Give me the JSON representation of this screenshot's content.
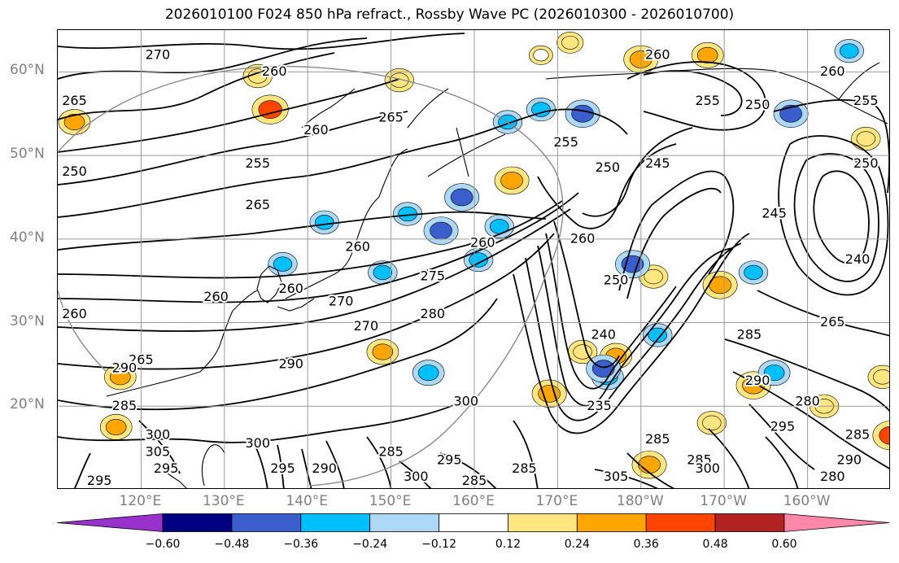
{
  "title": "2026010100 F024 850 hPa refract., Rossby Wave PC (2026010300 - 2026010700)",
  "chart_data": {
    "type": "map",
    "projection": "plate carree",
    "lon_range": [
      110,
      210
    ],
    "lat_range": [
      10,
      65
    ],
    "grid": true,
    "lat_ticks": [
      "60°N",
      "50°N",
      "40°N",
      "30°N",
      "20°N"
    ],
    "lat_values": [
      60,
      50,
      40,
      30,
      20
    ],
    "lon_ticks": [
      "120°E",
      "130°E",
      "140°E",
      "150°E",
      "160°E",
      "170°E",
      "180°W",
      "170°W",
      "160°W"
    ],
    "lon_values": [
      120,
      130,
      140,
      150,
      160,
      170,
      180,
      190,
      200
    ],
    "contour_field": "850 hPa refractivity",
    "contour_labels": [
      {
        "text": "270",
        "lon": 122,
        "lat": 62
      },
      {
        "text": "265",
        "lon": 112,
        "lat": 56.5
      },
      {
        "text": "260",
        "lon": 136,
        "lat": 60
      },
      {
        "text": "255",
        "lon": 134,
        "lat": 49
      },
      {
        "text": "260",
        "lon": 141,
        "lat": 53
      },
      {
        "text": "265",
        "lon": 150,
        "lat": 54.5
      },
      {
        "text": "250",
        "lon": 112,
        "lat": 48
      },
      {
        "text": "265",
        "lon": 134,
        "lat": 44
      },
      {
        "text": "260",
        "lon": 146,
        "lat": 39
      },
      {
        "text": "260",
        "lon": 161,
        "lat": 39.5
      },
      {
        "text": "275",
        "lon": 155,
        "lat": 35.5
      },
      {
        "text": "270",
        "lon": 144,
        "lat": 32.5
      },
      {
        "text": "260",
        "lon": 129,
        "lat": 33
      },
      {
        "text": "260",
        "lon": 138,
        "lat": 34
      },
      {
        "text": "270",
        "lon": 147,
        "lat": 29.5
      },
      {
        "text": "280",
        "lon": 155,
        "lat": 31
      },
      {
        "text": "260",
        "lon": 112,
        "lat": 31
      },
      {
        "text": "265",
        "lon": 120,
        "lat": 25.5
      },
      {
        "text": "255",
        "lon": 171,
        "lat": 51.5
      },
      {
        "text": "250",
        "lon": 176,
        "lat": 48.5
      },
      {
        "text": "245",
        "lon": 182,
        "lat": 49
      },
      {
        "text": "260",
        "lon": 182,
        "lat": 62
      },
      {
        "text": "255",
        "lon": 188,
        "lat": 56.5
      },
      {
        "text": "250",
        "lon": 194,
        "lat": 56
      },
      {
        "text": "260",
        "lon": 203,
        "lat": 60
      },
      {
        "text": "255",
        "lon": 207,
        "lat": 56.5
      },
      {
        "text": "250",
        "lon": 207,
        "lat": 49
      },
      {
        "text": "245",
        "lon": 196,
        "lat": 43
      },
      {
        "text": "240",
        "lon": 206,
        "lat": 37.5
      },
      {
        "text": "265",
        "lon": 203,
        "lat": 30
      },
      {
        "text": "260",
        "lon": 173,
        "lat": 40
      },
      {
        "text": "250",
        "lon": 177,
        "lat": 35
      },
      {
        "text": "240",
        "lon": 175.5,
        "lat": 28.5
      },
      {
        "text": "285",
        "lon": 193,
        "lat": 28.5
      },
      {
        "text": "290",
        "lon": 118,
        "lat": 24.5
      },
      {
        "text": "285",
        "lon": 118,
        "lat": 20
      },
      {
        "text": "290",
        "lon": 138,
        "lat": 25
      },
      {
        "text": "300",
        "lon": 159,
        "lat": 20.5
      },
      {
        "text": "235",
        "lon": 175,
        "lat": 20
      },
      {
        "text": "300",
        "lon": 122,
        "lat": 16.5
      },
      {
        "text": "305",
        "lon": 122,
        "lat": 14.5
      },
      {
        "text": "300",
        "lon": 134,
        "lat": 15.5
      },
      {
        "text": "295",
        "lon": 123,
        "lat": 12.5
      },
      {
        "text": "295",
        "lon": 115,
        "lat": 11
      },
      {
        "text": "295",
        "lon": 137,
        "lat": 12.5
      },
      {
        "text": "290",
        "lon": 142,
        "lat": 12.5
      },
      {
        "text": "285",
        "lon": 150,
        "lat": 14.5
      },
      {
        "text": "295",
        "lon": 157,
        "lat": 13.5
      },
      {
        "text": "300",
        "lon": 153,
        "lat": 11.5
      },
      {
        "text": "285",
        "lon": 160,
        "lat": 11
      },
      {
        "text": "285",
        "lon": 166,
        "lat": 12.5
      },
      {
        "text": "285",
        "lon": 182,
        "lat": 16
      },
      {
        "text": "305",
        "lon": 177,
        "lat": 11.5
      },
      {
        "text": "285",
        "lon": 187,
        "lat": 13.5
      },
      {
        "text": "300",
        "lon": 188,
        "lat": 12.5
      },
      {
        "text": "290",
        "lon": 194,
        "lat": 23
      },
      {
        "text": "280",
        "lon": 200,
        "lat": 20.5
      },
      {
        "text": "295",
        "lon": 197,
        "lat": 17.5
      },
      {
        "text": "290",
        "lon": 205,
        "lat": 13.5
      },
      {
        "text": "285",
        "lon": 206,
        "lat": 16.5
      },
      {
        "text": "280",
        "lon": 203,
        "lat": 11.5
      }
    ],
    "shaded_field": "Rossby Wave PC",
    "colorbar": {
      "ticks": [
        "−0.60",
        "−0.48",
        "−0.36",
        "−0.24",
        "−0.12",
        "0.12",
        "0.24",
        "0.36",
        "0.48",
        "0.60"
      ],
      "tick_values": [
        -0.6,
        -0.48,
        -0.36,
        -0.24,
        -0.12,
        0.12,
        0.24,
        0.36,
        0.48,
        0.6
      ],
      "extend": "both",
      "colors": [
        "#9932cc",
        "#000080",
        "#3a5fcd",
        "#00bfff",
        "#add8f6",
        "#ffffff",
        "#ffe680",
        "#ffa500",
        "#ff4500",
        "#b22222",
        "#ff88aa"
      ]
    },
    "shaded_patches": [
      {
        "lon": 135.5,
        "lat": 55.5,
        "value": 0.4
      },
      {
        "lon": 134,
        "lat": 59.5,
        "value": 0.24
      },
      {
        "lon": 151,
        "lat": 59,
        "value": 0.24
      },
      {
        "lon": 171.5,
        "lat": 63.5,
        "value": 0.18
      },
      {
        "lon": 180,
        "lat": 61.5,
        "value": 0.36
      },
      {
        "lon": 188,
        "lat": 62,
        "value": 0.3
      },
      {
        "lon": 112,
        "lat": 54,
        "value": 0.3
      },
      {
        "lon": 164.5,
        "lat": 47,
        "value": 0.36
      },
      {
        "lon": 207,
        "lat": 52,
        "value": 0.24
      },
      {
        "lon": 181.5,
        "lat": 35.5,
        "value": 0.24
      },
      {
        "lon": 189.5,
        "lat": 34.5,
        "value": 0.36
      },
      {
        "lon": 177,
        "lat": 26,
        "value": 0.3
      },
      {
        "lon": 169,
        "lat": 21.5,
        "value": 0.36
      },
      {
        "lon": 117.5,
        "lat": 23.5,
        "value": 0.3
      },
      {
        "lon": 117,
        "lat": 17.5,
        "value": 0.3
      },
      {
        "lon": 149,
        "lat": 26.5,
        "value": 0.3
      },
      {
        "lon": 193.5,
        "lat": 22.5,
        "value": 0.36
      },
      {
        "lon": 209,
        "lat": 23.5,
        "value": 0.24
      },
      {
        "lon": 181,
        "lat": 13,
        "value": 0.36
      },
      {
        "lon": 210,
        "lat": 16.5,
        "value": 0.4
      },
      {
        "lon": 202,
        "lat": 20,
        "value": 0.24
      },
      {
        "lon": 188.5,
        "lat": 18,
        "value": 0.24
      },
      {
        "lon": 168,
        "lat": 62,
        "value": 0.12
      },
      {
        "lon": 173,
        "lat": 26.5,
        "value": 0.24
      },
      {
        "lon": 142,
        "lat": 42,
        "value": -0.24
      },
      {
        "lon": 158.5,
        "lat": 45,
        "value": -0.36
      },
      {
        "lon": 156,
        "lat": 41,
        "value": -0.36
      },
      {
        "lon": 152,
        "lat": 43,
        "value": -0.24
      },
      {
        "lon": 179,
        "lat": 37,
        "value": -0.36
      },
      {
        "lon": 193.5,
        "lat": 36,
        "value": -0.24
      },
      {
        "lon": 173,
        "lat": 55,
        "value": -0.36
      },
      {
        "lon": 168,
        "lat": 55.5,
        "value": -0.24
      },
      {
        "lon": 198,
        "lat": 55,
        "value": -0.36
      },
      {
        "lon": 205,
        "lat": 62.5,
        "value": -0.24
      },
      {
        "lon": 176,
        "lat": 23.5,
        "value": -0.3
      },
      {
        "lon": 154.5,
        "lat": 24,
        "value": -0.3
      },
      {
        "lon": 137,
        "lat": 37,
        "value": -0.24
      },
      {
        "lon": 149,
        "lat": 36,
        "value": -0.24
      },
      {
        "lon": 160.5,
        "lat": 37.5,
        "value": -0.24
      },
      {
        "lon": 164,
        "lat": 54,
        "value": -0.24
      },
      {
        "lon": 163,
        "lat": 41.5,
        "value": -0.24
      },
      {
        "lon": 196,
        "lat": 24,
        "value": -0.3
      },
      {
        "lon": 182,
        "lat": 28.5,
        "value": -0.24
      },
      {
        "lon": 175.5,
        "lat": 24.5,
        "value": -0.36
      }
    ]
  }
}
